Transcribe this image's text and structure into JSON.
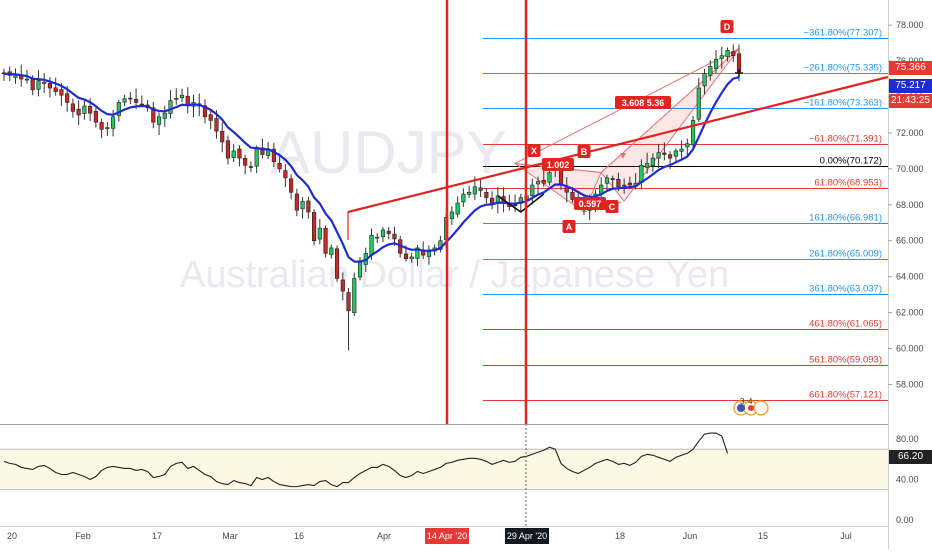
{
  "watermark": {
    "symbol": "AUDJPY",
    "description": "Australian Dollar / Japanese Yen"
  },
  "price_axis": {
    "ticks": [
      "78.000",
      "76.000",
      "74.000",
      "72.000",
      "70.000",
      "68.000",
      "66.000",
      "64.000",
      "62.000",
      "60.000",
      "58.000"
    ]
  },
  "price_labels": {
    "current": "75.366",
    "ema": "75.217",
    "countdown": "21:43:25"
  },
  "x_axis": {
    "ticks": [
      "20",
      "Feb",
      "17",
      "Mar",
      "16",
      "Apr",
      "18",
      "Jun",
      "15",
      "Jul"
    ],
    "highlight1": "14 Apr '20",
    "highlight2": "29 Apr '20"
  },
  "osc_axis": {
    "ticks": [
      "80.00",
      "40.00",
      "0.00"
    ],
    "current": "66.20"
  },
  "harmonic": {
    "X": "X",
    "A": "A",
    "B": "B",
    "C": "C",
    "D": "D",
    "ratio_xb": "1.002",
    "ratio_ac": "0.597",
    "ratio_bd": "3.608  5.36"
  },
  "fib_levels": [
    {
      "label": "−361.80%(77.307)",
      "price": 77.307,
      "color": "#2196f3"
    },
    {
      "label": "−261.80%(75.335)",
      "price": 75.335,
      "color": "#2196f3"
    },
    {
      "label": "−161.80%(73.363)",
      "price": 73.363,
      "color": "#2196f3"
    },
    {
      "label": "−61.80%(71.391)",
      "price": 71.391,
      "color": "#e53935"
    },
    {
      "label": "0.00%(70.172)",
      "price": 70.172,
      "color": "#000000"
    },
    {
      "label": "61.80%(68.953)",
      "price": 68.953,
      "color": "#e53935"
    },
    {
      "label": "161.80%(66.981)",
      "price": 66.981,
      "color": "#2196f3"
    },
    {
      "label": "261.80%(65.009)",
      "price": 65.009,
      "color": "#2196f3"
    },
    {
      "label": "361.80%(63.037)",
      "price": 63.037,
      "color": "#2196f3"
    },
    {
      "label": "461.80%(61.065)",
      "price": 61.065,
      "color": "#e53935"
    },
    {
      "label": "561.80%(59.093)",
      "price": 59.093,
      "color": "#e53935"
    },
    {
      "label": "661.80%(57.121)",
      "price": 57.121,
      "color": "#e53935"
    }
  ],
  "chart_data": {
    "type": "candlestick",
    "ylim": [
      55.8,
      79.4
    ],
    "closes": [
      75.3,
      75.2,
      75.2,
      75.0,
      75.0,
      74.4,
      74.9,
      74.8,
      74.5,
      74.3,
      74.1,
      73.7,
      73.2,
      73.0,
      73.5,
      73.1,
      72.6,
      72.2,
      72.3,
      72.9,
      73.7,
      73.9,
      73.9,
      73.7,
      73.6,
      73.4,
      72.6,
      72.9,
      73.1,
      73.8,
      73.9,
      74.1,
      73.5,
      73.7,
      73.5,
      72.9,
      72.7,
      72.1,
      71.5,
      70.6,
      71.0,
      70.6,
      70.2,
      70.1,
      71.1,
      70.8,
      71.1,
      70.4,
      70.0,
      69.5,
      68.7,
      67.7,
      68.2,
      67.6,
      66.0,
      66.7,
      65.3,
      65.6,
      63.9,
      63.2,
      62.1,
      63.9,
      64.8,
      65.3,
      66.3,
      66.2,
      66.6,
      66.4,
      66.1,
      65.3,
      65.0,
      65.1,
      65.6,
      65.2,
      65.4,
      65.6,
      66.0,
      67.3,
      67.6,
      68.1,
      68.6,
      68.7,
      69.0,
      68.8,
      68.4,
      68.1,
      68.5,
      68.1,
      67.9,
      68.0,
      68.4,
      68.5,
      69.1,
      69.3,
      69.2,
      69.8,
      70.0,
      69.1,
      68.7,
      68.3,
      68.0,
      67.8,
      68.0,
      68.6,
      69.1,
      69.5,
      69.4,
      69.0,
      69.1,
      69.1,
      69.2,
      70.2,
      70.3,
      70.6,
      70.9,
      70.8,
      70.6,
      71.0,
      71.1,
      71.4,
      72.7,
      74.5,
      75.3,
      75.7,
      76.1,
      76.3,
      76.6,
      76.3,
      75.4
    ]
  },
  "osc_data": {
    "ylim": [
      -4,
      92
    ],
    "values": [
      58,
      56,
      55,
      52,
      51,
      50,
      53,
      54,
      51,
      47,
      45,
      45,
      47,
      45,
      43,
      40,
      43,
      49,
      52,
      53,
      52,
      51,
      51,
      49,
      50,
      48,
      42,
      43,
      45,
      53,
      56,
      57,
      51,
      53,
      49,
      45,
      43,
      38,
      36,
      35,
      39,
      37,
      36,
      34,
      42,
      40,
      42,
      38,
      35,
      34,
      33,
      33,
      34,
      35,
      34,
      38,
      39,
      35,
      33,
      37,
      37,
      42,
      46,
      49,
      52,
      52,
      55,
      53,
      49,
      44,
      42,
      44,
      48,
      46,
      48,
      50,
      52,
      56,
      57,
      59,
      60,
      61,
      61,
      60,
      58,
      55,
      57,
      59,
      57,
      58,
      62,
      63,
      65,
      67,
      69,
      72,
      70,
      56,
      51,
      48,
      46,
      49,
      52,
      56,
      58,
      60,
      58,
      55,
      56,
      54,
      57,
      63,
      65,
      64,
      62,
      60,
      58,
      62,
      64,
      66,
      70,
      78,
      85,
      86,
      86,
      83,
      66
    ]
  }
}
